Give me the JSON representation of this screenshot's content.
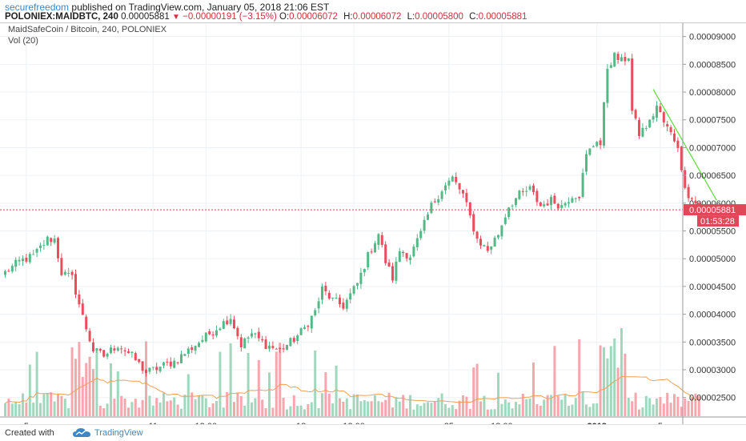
{
  "header": {
    "author": "securefreedom",
    "published": "published on TradingView.com, January 05, 2018 21:06 EST",
    "symbol": "POLONIEX:MAIDBTC, 240",
    "last": "0.00005881",
    "change": "−0.00000191 (−3.15%)",
    "ohlc": [
      {
        "k": "O:",
        "v": "0.00006072"
      },
      {
        "k": "H:",
        "v": "0.00006072"
      },
      {
        "k": "L:",
        "v": "0.00005800"
      },
      {
        "k": "C:",
        "v": "0.00005881"
      }
    ]
  },
  "legend": {
    "title": "MaidSafeCoin / Bitcoin, 240, POLONIEX",
    "vol": "Vol (20)"
  },
  "footer": {
    "created": "Created with",
    "brand": "TradingView"
  },
  "colors": {
    "up": "#53b987",
    "down": "#eb4d5c",
    "up_vol": "#9fd8bd",
    "down_vol": "#f6a6ad",
    "ma": "#f0a055",
    "trend": "#66dd44",
    "price_line": "#e04858",
    "grid": "#eef1f4"
  },
  "chart_data": {
    "type": "candlestick",
    "ylim": [
      2.15e-05,
      9.24e-05
    ],
    "y_ticks": [
      "0.00009000",
      "0.00008500",
      "0.00008000",
      "0.00007500",
      "0.00007000",
      "0.00006500",
      "0.00006000",
      "0.00005500",
      "0.00005000",
      "0.00004500",
      "0.00004000",
      "0.00003500",
      "0.00003000",
      "0.00002500"
    ],
    "y_tick_values": [
      9e-05,
      8.5e-05,
      8e-05,
      7.5e-05,
      7e-05,
      6.5e-05,
      6e-05,
      5.5e-05,
      5e-05,
      4.5e-05,
      4e-05,
      3.5e-05,
      3e-05,
      2.5e-05
    ],
    "x_ticks": [
      {
        "label": "5",
        "bar": 6
      },
      {
        "label": "11",
        "bar": 42
      },
      {
        "label": "12:00",
        "bar": 57
      },
      {
        "label": "18",
        "bar": 84
      },
      {
        "label": "12:00",
        "bar": 99
      },
      {
        "label": "25",
        "bar": 126
      },
      {
        "label": "12:00",
        "bar": 141
      },
      {
        "label": "2018",
        "bar": 168
      },
      {
        "label": "5",
        "bar": 186
      }
    ],
    "price_anchors": [
      [
        0,
        4.75e-05
      ],
      [
        4,
        4.95e-05
      ],
      [
        8,
        5.05e-05
      ],
      [
        12,
        5.35e-05
      ],
      [
        14,
        5.35e-05
      ],
      [
        16,
        4.75e-05
      ],
      [
        19,
        4.65e-05
      ],
      [
        22,
        3.95e-05
      ],
      [
        25,
        3.35e-05
      ],
      [
        28,
        3.25e-05
      ],
      [
        32,
        3.45e-05
      ],
      [
        36,
        3.25e-05
      ],
      [
        40,
        2.95e-05
      ],
      [
        44,
        3.05e-05
      ],
      [
        48,
        3.15e-05
      ],
      [
        52,
        3.35e-05
      ],
      [
        56,
        3.55e-05
      ],
      [
        60,
        3.75e-05
      ],
      [
        64,
        3.95e-05
      ],
      [
        67,
        3.45e-05
      ],
      [
        70,
        3.65e-05
      ],
      [
        74,
        3.45e-05
      ],
      [
        78,
        3.35e-05
      ],
      [
        82,
        3.55e-05
      ],
      [
        85,
        3.75e-05
      ],
      [
        88,
        4.05e-05
      ],
      [
        90,
        4.45e-05
      ],
      [
        93,
        4.25e-05
      ],
      [
        96,
        4.15e-05
      ],
      [
        100,
        4.55e-05
      ],
      [
        103,
        5.05e-05
      ],
      [
        106,
        5.45e-05
      ],
      [
        108,
        4.95e-05
      ],
      [
        110,
        4.65e-05
      ],
      [
        112,
        5.15e-05
      ],
      [
        115,
        5.05e-05
      ],
      [
        118,
        5.45e-05
      ],
      [
        121,
        5.95e-05
      ],
      [
        124,
        6.25e-05
      ],
      [
        127,
        6.45e-05
      ],
      [
        130,
        6.15e-05
      ],
      [
        132,
        5.75e-05
      ],
      [
        134,
        5.35e-05
      ],
      [
        137,
        5.15e-05
      ],
      [
        140,
        5.45e-05
      ],
      [
        143,
        5.95e-05
      ],
      [
        146,
        6.15e-05
      ],
      [
        149,
        6.25e-05
      ],
      [
        152,
        5.95e-05
      ],
      [
        155,
        6.05e-05
      ],
      [
        158,
        5.95e-05
      ],
      [
        161,
        6.15e-05
      ],
      [
        163,
        6.15e-05
      ],
      [
        165,
        6.85e-05
      ],
      [
        168,
        7.15e-05
      ],
      [
        169,
        7.05e-05
      ],
      [
        171,
        8.45e-05
      ],
      [
        173,
        8.65e-05
      ],
      [
        175,
        8.55e-05
      ],
      [
        177,
        8.65e-05
      ],
      [
        178,
        7.65e-05
      ],
      [
        180,
        7.25e-05
      ],
      [
        183,
        7.45e-05
      ],
      [
        185,
        7.75e-05
      ],
      [
        187,
        7.45e-05
      ],
      [
        189,
        7.25e-05
      ],
      [
        191,
        7.05e-05
      ],
      [
        192,
        6.55e-05
      ],
      [
        194,
        6.15e-05
      ],
      [
        196,
        6e-05
      ],
      [
        197,
        5.881e-05
      ]
    ],
    "last_price": {
      "value": 5.881e-05,
      "label": "0.00005881",
      "countdown": "01:53:28"
    },
    "trend_line": {
      "from": [
        184,
        8.05e-05
      ],
      "to": [
        202,
        6.05e-05
      ]
    },
    "volume_ma_period": 20
  }
}
